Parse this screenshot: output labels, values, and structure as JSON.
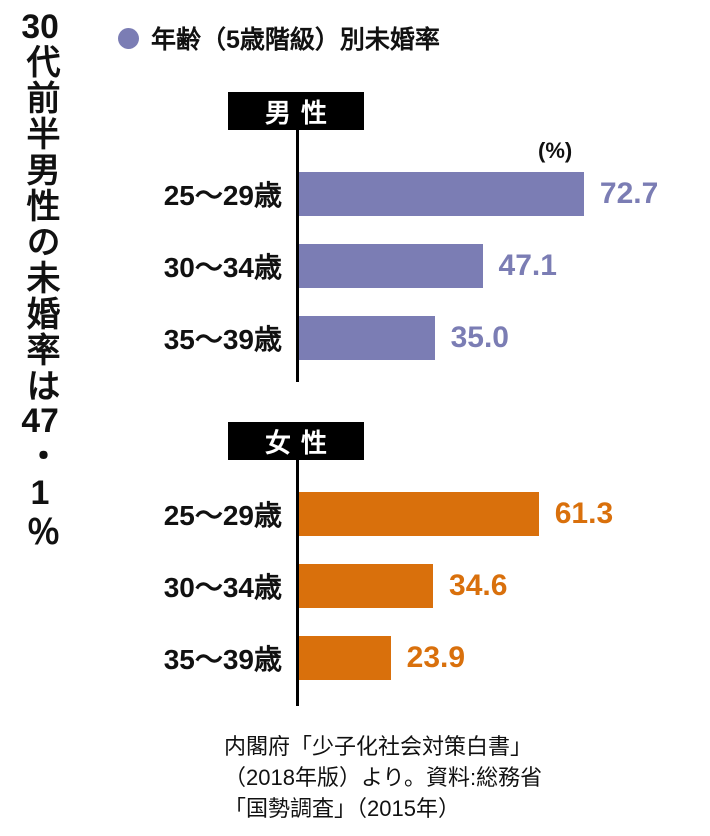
{
  "side_title": {
    "text": "30代前半男性の未婚率は47・1％",
    "parts": [
      {
        "text": "30",
        "combine": true
      },
      {
        "text": "代前半男性の未婚率は",
        "combine": false
      },
      {
        "text": "47",
        "combine": true
      },
      {
        "text": "・1％",
        "combine": false
      }
    ]
  },
  "legend": {
    "label": "年齢（5歳階級）別未婚率",
    "dot_color": "#7b7db4"
  },
  "chart_data": [
    {
      "type": "bar",
      "title": "男性",
      "unit_label": "(%)",
      "orientation": "horizontal",
      "categories": [
        "25〜29歳",
        "30〜34歳",
        "35〜39歳"
      ],
      "values": [
        72.7,
        47.1,
        35.0
      ],
      "value_labels": [
        "72.7",
        "47.1",
        "35.0"
      ],
      "bar_color": "#7b7db4",
      "xlim": [
        0,
        80
      ],
      "grid": false,
      "legend_position": "top"
    },
    {
      "type": "bar",
      "title": "女性",
      "unit_label": "",
      "orientation": "horizontal",
      "categories": [
        "25〜29歳",
        "30〜34歳",
        "35〜39歳"
      ],
      "values": [
        61.3,
        34.6,
        23.9
      ],
      "value_labels": [
        "61.3",
        "34.6",
        "23.9"
      ],
      "bar_color": "#d9700c",
      "xlim": [
        0,
        80
      ],
      "grid": false,
      "legend_position": "top"
    }
  ],
  "source": {
    "lines": [
      "内閣府「少子化社会対策白書」",
      "（2018年版）より。資料:総務省",
      "「国勢調査」（2015年）"
    ]
  }
}
